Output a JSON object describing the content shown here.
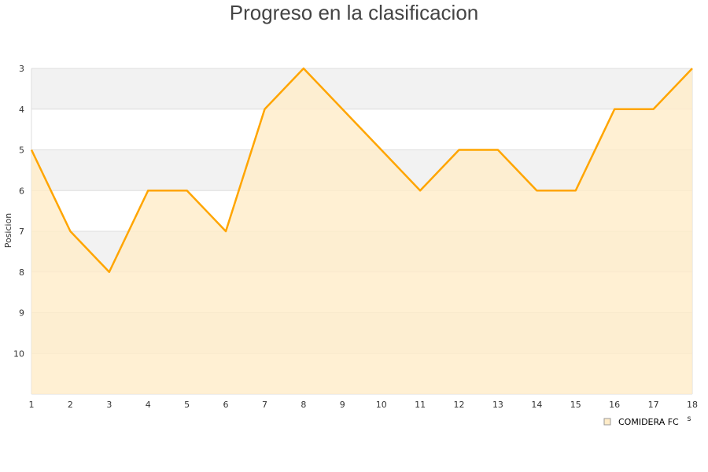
{
  "chart_data": {
    "type": "area",
    "title": "Progreso en la clasificacion",
    "ylabel": "Posicion",
    "xlabel": "s",
    "x": [
      1,
      2,
      3,
      4,
      5,
      6,
      7,
      8,
      9,
      10,
      11,
      12,
      13,
      14,
      15,
      16,
      17,
      18
    ],
    "series": [
      {
        "name": "COMIDERA FC",
        "values": [
          5,
          7,
          8,
          6,
          6,
          7,
          4,
          3,
          4,
          5,
          6,
          5,
          5,
          6,
          6,
          4,
          4,
          3
        ]
      }
    ],
    "yticks": [
      3,
      4,
      5,
      6,
      7,
      8,
      9,
      10
    ],
    "ylim": [
      11,
      3
    ],
    "y_reversed": true,
    "xlim": [
      1,
      18
    ],
    "grid": true,
    "legend": "bottom-right",
    "colors": {
      "line": "#ffa500",
      "fill": "#ffecc8",
      "band": "#f2f2f2",
      "grid": "#dddddd"
    }
  }
}
